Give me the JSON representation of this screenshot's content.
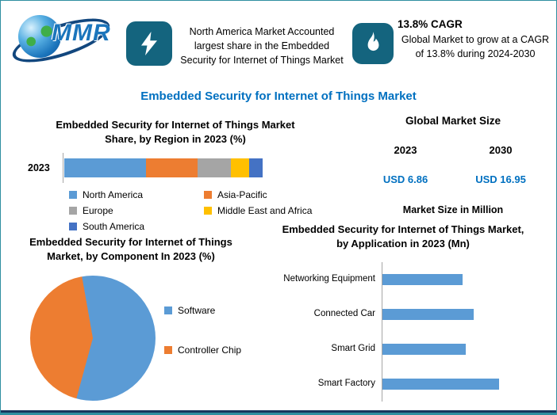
{
  "header": {
    "logo_text": "MMR",
    "highlight": {
      "text": "North America Market Accounted largest share in the Embedded Security for Internet of Things Market"
    },
    "cagr": {
      "title": "13.8% CAGR",
      "text": "Global Market to grow at a CAGR of 13.8% during 2024-2030"
    }
  },
  "page_title": "Embedded Security for Internet of Things Market",
  "market_size": {
    "title": "Global Market Size",
    "year_left": "2023",
    "year_right": "2030",
    "value_left": "USD 6.86",
    "value_right": "USD 16.95",
    "note": "Market Size in Million"
  },
  "chart_data": [
    {
      "type": "bar",
      "variant": "stacked-horizontal",
      "title": "Embedded Security for Internet of Things Market Share, by Region in 2023 (%)",
      "categories": [
        "2023"
      ],
      "series": [
        {
          "name": "North America",
          "color": "#5B9BD5",
          "values": [
            41
          ]
        },
        {
          "name": "Asia-Pacific",
          "color": "#ED7D31",
          "values": [
            26
          ]
        },
        {
          "name": "Europe",
          "color": "#A5A5A5",
          "values": [
            17
          ]
        },
        {
          "name": "Middle East and Africa",
          "color": "#FFC000",
          "values": [
            9
          ]
        },
        {
          "name": "South America",
          "color": "#4472C4",
          "values": [
            7
          ]
        }
      ],
      "xlim": [
        0,
        100
      ],
      "legend_position": "bottom"
    },
    {
      "type": "pie",
      "title": "Embedded Security for Internet of Things Market, by Component In 2023 (%)",
      "labels": [
        "Software",
        "Controller Chip"
      ],
      "values": [
        57,
        43
      ],
      "colors": [
        "#5B9BD5",
        "#ED7D31"
      ],
      "start_angle_deg": -10,
      "legend_position": "right"
    },
    {
      "type": "bar",
      "variant": "horizontal",
      "title": "Embedded Security for Internet of Things Market, by Application in 2023 (Mn)",
      "categories": [
        "Networking Equipment",
        "Connected Car",
        "Smart Grid",
        "Smart Factory"
      ],
      "values": [
        100,
        114,
        104,
        146
      ],
      "axis_max": 207,
      "color": "#5B9BD5"
    }
  ]
}
